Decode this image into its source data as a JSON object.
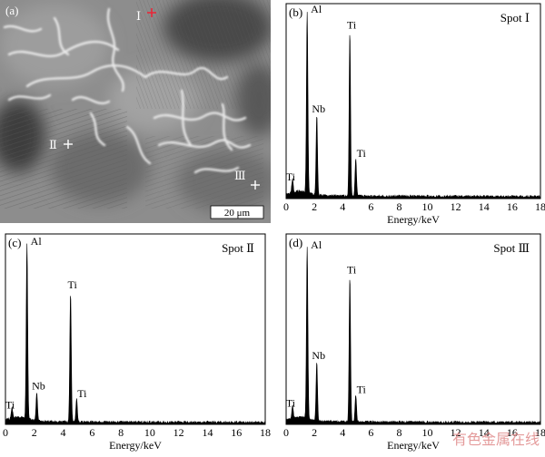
{
  "micrograph": {
    "panel_label": "(a)",
    "scale_bar": "20 μm",
    "markers": [
      {
        "label": "Ⅰ",
        "color": "#e8283a"
      },
      {
        "label": "Ⅱ",
        "color": "#ffffff"
      },
      {
        "label": "Ⅲ",
        "color": "#ffffff"
      }
    ]
  },
  "watermark": "有色金属在线",
  "chart_data": [
    {
      "type": "line",
      "panel_label": "(b)",
      "title": "Spot Ⅰ",
      "xlabel": "Energy/keV",
      "xlim": [
        0,
        18
      ],
      "xticks": [
        "0",
        "2",
        "4",
        "6",
        "8",
        "10",
        "12",
        "14",
        "16",
        "18"
      ],
      "peaks": [
        {
          "x": 0.45,
          "h": 0.07,
          "label": "Ti"
        },
        {
          "x": 1.49,
          "h": 0.93,
          "label": "Al"
        },
        {
          "x": 2.17,
          "h": 0.41,
          "label": "Nb"
        },
        {
          "x": 4.51,
          "h": 0.84,
          "label": "Ti"
        },
        {
          "x": 4.93,
          "h": 0.19,
          "label": "Ti"
        }
      ]
    },
    {
      "type": "line",
      "panel_label": "(c)",
      "title": "Spot Ⅱ",
      "xlabel": "Energy/keV",
      "xlim": [
        0,
        18
      ],
      "xticks": [
        "0",
        "2",
        "4",
        "6",
        "8",
        "10",
        "12",
        "14",
        "16",
        "18"
      ],
      "peaks": [
        {
          "x": 0.45,
          "h": 0.06,
          "label": "Ti"
        },
        {
          "x": 1.49,
          "h": 0.92,
          "label": "Al"
        },
        {
          "x": 2.17,
          "h": 0.15,
          "label": "Nb"
        },
        {
          "x": 4.51,
          "h": 0.68,
          "label": "Ti"
        },
        {
          "x": 4.93,
          "h": 0.12,
          "label": "Ti"
        }
      ]
    },
    {
      "type": "line",
      "panel_label": "(d)",
      "title": "Spot Ⅲ",
      "xlabel": "Energy/keV",
      "xlim": [
        0,
        18
      ],
      "xticks": [
        "0",
        "2",
        "4",
        "6",
        "8",
        "10",
        "12",
        "14",
        "16",
        "18"
      ],
      "peaks": [
        {
          "x": 0.45,
          "h": 0.07,
          "label": "Ti"
        },
        {
          "x": 1.49,
          "h": 0.9,
          "label": "Al"
        },
        {
          "x": 2.17,
          "h": 0.31,
          "label": "Nb"
        },
        {
          "x": 4.51,
          "h": 0.76,
          "label": "Ti"
        },
        {
          "x": 4.93,
          "h": 0.14,
          "label": "Ti"
        }
      ]
    }
  ]
}
